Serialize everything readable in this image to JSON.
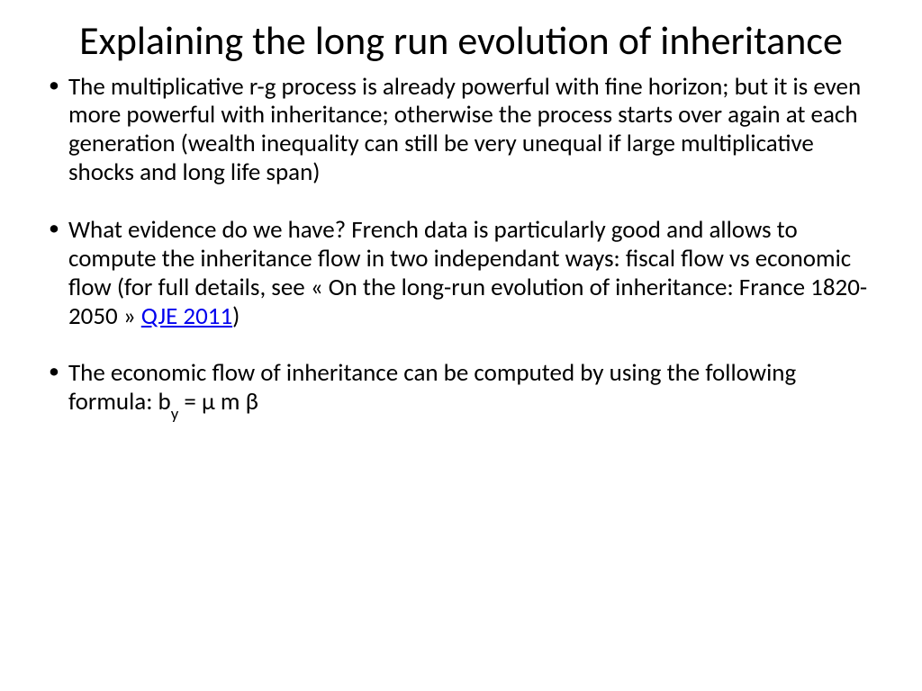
{
  "title": "Explaining the long run evolution of inheritance",
  "bullets": [
    {
      "text_a": "The multiplicative r-g process is already powerful with fine horizon; but it is even more powerful with inheritance; otherwise the process starts over again at each generation (wealth inequality can still be very unequal if large multiplicative shocks and long life span)"
    },
    {
      "text_a": "What evidence do we have? French data is particularly good and allows to compute the inheritance flow in two independant ways: fiscal flow vs economic flow (for full details, see « On the long-run evolution of inheritance: France 1820-2050 » ",
      "link": "QJE 2011",
      "text_b": ")"
    },
    {
      "text_a": "The economic flow of inheritance can be computed by using the following formula: b",
      "sub": "y",
      "text_b": " = μ m β"
    }
  ],
  "colors": {
    "background": "#ffffff",
    "text": "#000000",
    "link": "#0000ee"
  },
  "typography": {
    "title_fontsize": 44,
    "body_fontsize": 27,
    "font_family": "Calibri"
  }
}
